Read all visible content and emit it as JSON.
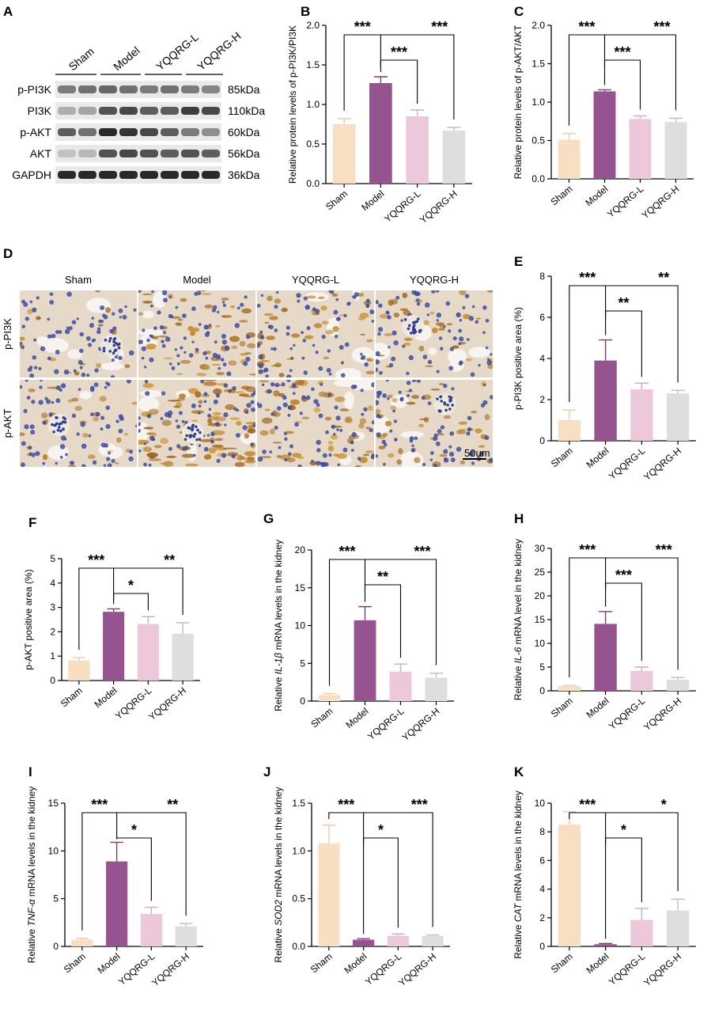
{
  "colors": {
    "Sham": "#f8dfc2",
    "Model": "#95538f",
    "YQQRG-L": "#ecc8da",
    "YQQRG-H": "#dedede",
    "Sham_err": "#eecba5",
    "Model_err": "#7c3c77",
    "YQQRG-L_err": "#d7a6bf",
    "YQQRG-H_err": "#bdbdbd"
  },
  "blot": {
    "letter": "A",
    "groups": [
      "Sham",
      "Model",
      "YQQRG-L",
      "YQQRG-H"
    ],
    "proteins": [
      "p-PI3K",
      "PI3K",
      "p-AKT",
      "AKT",
      "GAPDH"
    ],
    "sizes": [
      "85kDa",
      "110kDa",
      "60kDa",
      "56kDa",
      "36kDa"
    ],
    "intensity": [
      [
        0.55,
        0.6,
        0.65,
        0.6,
        0.55,
        0.6,
        0.55,
        0.5
      ],
      [
        0.3,
        0.35,
        0.75,
        0.8,
        0.7,
        0.7,
        0.85,
        0.8
      ],
      [
        0.7,
        0.6,
        0.95,
        0.9,
        0.8,
        0.7,
        0.55,
        0.45
      ],
      [
        0.2,
        0.25,
        0.75,
        0.8,
        0.75,
        0.7,
        0.75,
        0.7
      ],
      [
        0.95,
        0.95,
        0.95,
        0.95,
        0.95,
        0.95,
        0.95,
        0.95
      ]
    ]
  },
  "histology": {
    "letter": "D",
    "columns": [
      "Sham",
      "Model",
      "YQQRG-L",
      "YQQRG-H"
    ],
    "rows": [
      "p-PI3K",
      "p-AKT"
    ],
    "scale_bar": "50um",
    "stain_level": [
      [
        0.15,
        0.55,
        0.45,
        0.35
      ],
      [
        0.3,
        0.9,
        0.6,
        0.45
      ]
    ]
  },
  "chart_data": [
    {
      "letter": "B",
      "type": "bar",
      "categories": [
        "Sham",
        "Model",
        "YQQRG-L",
        "YQQRG-H"
      ],
      "values": [
        0.75,
        1.27,
        0.85,
        0.67
      ],
      "errors": [
        0.07,
        0.08,
        0.08,
        0.04
      ],
      "ylabel": "Relative protein levels of p-PI3K/PI3K",
      "ylabel_italic": "",
      "ylabel_suffix": "",
      "ylim": [
        0,
        2.0
      ],
      "yticks": [
        "0.0",
        "0.5",
        "1.0",
        "1.5",
        "2.0"
      ],
      "brackets": [
        {
          "from": 0,
          "to": 1,
          "text": "***"
        },
        {
          "from": 1,
          "to": 3,
          "text": "***"
        },
        {
          "from": 1,
          "to": 2,
          "text": "***"
        }
      ]
    },
    {
      "letter": "C",
      "type": "bar",
      "categories": [
        "Sham",
        "Model",
        "YQQRG-L",
        "YQQRG-H"
      ],
      "values": [
        0.51,
        1.14,
        0.78,
        0.74
      ],
      "errors": [
        0.08,
        0.02,
        0.04,
        0.05
      ],
      "ylabel": "Relative protein levels of p-AKT/AKT",
      "ylabel_italic": "",
      "ylabel_suffix": "",
      "ylim": [
        0,
        2.0
      ],
      "yticks": [
        "0.0",
        "0.5",
        "1.0",
        "1.5",
        "2.0"
      ],
      "brackets": [
        {
          "from": 0,
          "to": 1,
          "text": "***"
        },
        {
          "from": 1,
          "to": 3,
          "text": "***"
        },
        {
          "from": 1,
          "to": 2,
          "text": "***"
        }
      ]
    },
    {
      "letter": "E",
      "type": "bar",
      "categories": [
        "Sham",
        "Model",
        "YQQRG-L",
        "YQQRG-H"
      ],
      "values": [
        1.0,
        3.9,
        2.5,
        2.3
      ],
      "errors": [
        0.5,
        1.0,
        0.3,
        0.15
      ],
      "ylabel": "p-PI3K positive area (%)",
      "ylabel_italic": "",
      "ylabel_suffix": "",
      "ylim": [
        0,
        8
      ],
      "yticks": [
        "0",
        "2",
        "4",
        "6",
        "8"
      ],
      "brackets": [
        {
          "from": 0,
          "to": 1,
          "text": "***"
        },
        {
          "from": 1,
          "to": 3,
          "text": "**"
        },
        {
          "from": 1,
          "to": 2,
          "text": "**"
        }
      ]
    },
    {
      "letter": "F",
      "type": "bar",
      "categories": [
        "Sham",
        "Model",
        "YQQRG-L",
        "YQQRG-H"
      ],
      "values": [
        0.82,
        2.82,
        2.32,
        1.92
      ],
      "errors": [
        0.12,
        0.12,
        0.3,
        0.45
      ],
      "ylabel": "p-AKT positive area (%)",
      "ylabel_italic": "",
      "ylabel_suffix": "",
      "ylim": [
        0,
        5
      ],
      "yticks": [
        "0",
        "1",
        "2",
        "3",
        "4",
        "5"
      ],
      "brackets": [
        {
          "from": 0,
          "to": 1,
          "text": "***"
        },
        {
          "from": 1,
          "to": 3,
          "text": "**"
        },
        {
          "from": 1,
          "to": 2,
          "text": "*"
        }
      ]
    },
    {
      "letter": "G",
      "type": "bar",
      "categories": [
        "Sham",
        "Model",
        "YQQRG-L",
        "YQQRG-H"
      ],
      "values": [
        0.8,
        10.7,
        3.9,
        3.1
      ],
      "errors": [
        0.2,
        1.8,
        1.0,
        0.6
      ],
      "ylabel": "Relative ",
      "ylabel_italic": "IL-1β",
      "ylabel_suffix": " mRNA levels in the kidney",
      "ylim": [
        0,
        20
      ],
      "yticks": [
        "0",
        "5",
        "10",
        "15",
        "20"
      ],
      "brackets": [
        {
          "from": 0,
          "to": 1,
          "text": "***"
        },
        {
          "from": 1,
          "to": 3,
          "text": "***"
        },
        {
          "from": 1,
          "to": 2,
          "text": "**"
        }
      ]
    },
    {
      "letter": "H",
      "type": "bar",
      "categories": [
        "Sham",
        "Model",
        "YQQRG-L",
        "YQQRG-H"
      ],
      "values": [
        1.0,
        14.1,
        4.2,
        2.3
      ],
      "errors": [
        0.15,
        2.6,
        0.8,
        0.5
      ],
      "ylabel": "Relative ",
      "ylabel_italic": "IL-6",
      "ylabel_suffix": " mRNA level in the kidney",
      "ylim": [
        0,
        30
      ],
      "yticks": [
        "0",
        "5",
        "10",
        "15",
        "20",
        "25",
        "30"
      ],
      "brackets": [
        {
          "from": 0,
          "to": 1,
          "text": "***"
        },
        {
          "from": 1,
          "to": 3,
          "text": "***"
        },
        {
          "from": 1,
          "to": 2,
          "text": "***"
        }
      ]
    },
    {
      "letter": "I",
      "type": "bar",
      "categories": [
        "Sham",
        "Model",
        "YQQRG-L",
        "YQQRG-H"
      ],
      "values": [
        0.7,
        8.9,
        3.4,
        2.1
      ],
      "errors": [
        0.15,
        2.0,
        0.7,
        0.3
      ],
      "ylabel": "Relative ",
      "ylabel_italic": "TNF-α",
      "ylabel_suffix": " mRNA levels in the kidney",
      "ylim": [
        0,
        15
      ],
      "yticks": [
        "0",
        "5",
        "10",
        "15"
      ],
      "brackets": [
        {
          "from": 0,
          "to": 1,
          "text": "***"
        },
        {
          "from": 1,
          "to": 3,
          "text": "**"
        },
        {
          "from": 1,
          "to": 2,
          "text": "*"
        }
      ]
    },
    {
      "letter": "J",
      "type": "bar",
      "categories": [
        "Sham",
        "Model",
        "YQQRG-L",
        "YQQRG-H"
      ],
      "values": [
        1.08,
        0.07,
        0.11,
        0.11
      ],
      "errors": [
        0.19,
        0.01,
        0.02,
        0.01
      ],
      "ylabel": "Relative ",
      "ylabel_italic": "SOD2",
      "ylabel_suffix": " mRNA levels in the kidney",
      "ylim": [
        0,
        1.5
      ],
      "yticks": [
        "0.0",
        "0.5",
        "1.0",
        "1.5"
      ],
      "brackets": [
        {
          "from": 0,
          "to": 1,
          "text": "***"
        },
        {
          "from": 1,
          "to": 3,
          "text": "***"
        },
        {
          "from": 1,
          "to": 2,
          "text": "*"
        }
      ]
    },
    {
      "letter": "K",
      "type": "bar",
      "categories": [
        "Sham",
        "Model",
        "YQQRG-L",
        "YQQRG-H"
      ],
      "values": [
        8.5,
        0.15,
        1.85,
        2.5
      ],
      "errors": [
        0.9,
        0.05,
        0.8,
        0.8
      ],
      "ylabel": "Relative ",
      "ylabel_italic": "CAT",
      "ylabel_suffix": " mRNA levels in the kidney",
      "ylim": [
        0,
        10
      ],
      "yticks": [
        "0",
        "2",
        "4",
        "6",
        "8",
        "10"
      ],
      "brackets": [
        {
          "from": 0,
          "to": 1,
          "text": "***"
        },
        {
          "from": 1,
          "to": 3,
          "text": "*"
        },
        {
          "from": 1,
          "to": 2,
          "text": "*"
        }
      ]
    }
  ]
}
